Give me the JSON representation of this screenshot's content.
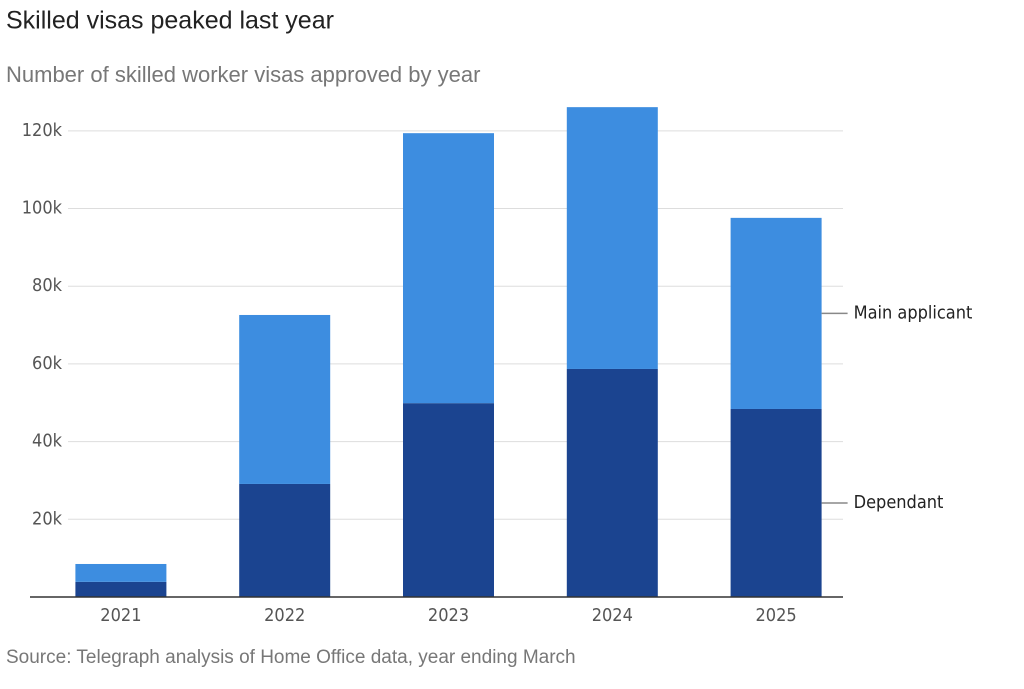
{
  "chart_data": {
    "type": "stacked-bar",
    "title": "Skilled visas peaked last year",
    "subtitle": "Number of skilled worker visas approved by year",
    "source": "Source: Telegraph analysis of Home Office data, year ending March",
    "categories": [
      "2021",
      "2022",
      "2023",
      "2024",
      "2025"
    ],
    "series": [
      {
        "name": "Dependant",
        "color": "#1b4490",
        "values": [
          3900,
          29100,
          49900,
          58700,
          48400
        ]
      },
      {
        "name": "Main applicant",
        "color": "#3d8de0",
        "values": [
          4600,
          43500,
          69500,
          67400,
          49200
        ]
      }
    ],
    "ylim": [
      0,
      130000
    ],
    "yticks": [
      {
        "value": 20000,
        "label": "20k"
      },
      {
        "value": 40000,
        "label": "40k"
      },
      {
        "value": 60000,
        "label": "60k"
      },
      {
        "value": 80000,
        "label": "80k"
      },
      {
        "value": 100000,
        "label": "100k"
      },
      {
        "value": 120000,
        "label": "120k"
      }
    ],
    "grid": true
  }
}
